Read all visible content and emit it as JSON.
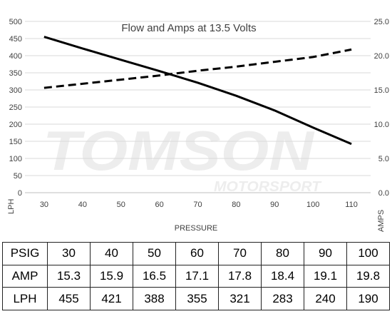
{
  "chart_data": {
    "type": "line",
    "title": "Flow and Amps at 13.5 Volts",
    "xlabel": "PRESSURE",
    "ylabel": "LPH",
    "y2label": "AMPS",
    "xlim": [
      25,
      115
    ],
    "ylim": [
      0,
      500
    ],
    "y2lim": [
      0,
      25
    ],
    "x_ticks": [
      "30",
      "40",
      "50",
      "60",
      "70",
      "80",
      "90",
      "100",
      "110"
    ],
    "y_ticks": [
      "0",
      "50",
      "100",
      "150",
      "200",
      "250",
      "300",
      "350",
      "400",
      "450",
      "500"
    ],
    "y2_ticks": [
      "0.0",
      "5.0",
      "10.0",
      "15.0",
      "20.0",
      "25.0"
    ],
    "grid": true,
    "series": [
      {
        "axis": "left",
        "style": "solid",
        "color": "#000000",
        "x": [
          30,
          40,
          50,
          60,
          70,
          80,
          90,
          100,
          110
        ],
        "values": [
          455,
          421,
          388,
          355,
          321,
          283,
          240,
          190,
          142
        ]
      },
      {
        "axis": "right",
        "style": "dashed",
        "color": "#000000",
        "x": [
          30,
          40,
          50,
          60,
          70,
          80,
          90,
          100,
          110
        ],
        "values": [
          15.3,
          15.9,
          16.5,
          17.1,
          17.8,
          18.4,
          19.1,
          19.8,
          20.9
        ]
      }
    ]
  },
  "watermark": {
    "line1": "TOMSON",
    "line2": "MOTORSPORT"
  },
  "table": {
    "rows": [
      {
        "label": "PSIG",
        "cells": [
          "30",
          "40",
          "50",
          "60",
          "70",
          "80",
          "90",
          "100"
        ]
      },
      {
        "label": "AMP",
        "cells": [
          "15.3",
          "15.9",
          "16.5",
          "17.1",
          "17.8",
          "18.4",
          "19.1",
          "19.8"
        ]
      },
      {
        "label": "LPH",
        "cells": [
          "455",
          "421",
          "388",
          "355",
          "321",
          "283",
          "240",
          "190"
        ]
      }
    ]
  }
}
